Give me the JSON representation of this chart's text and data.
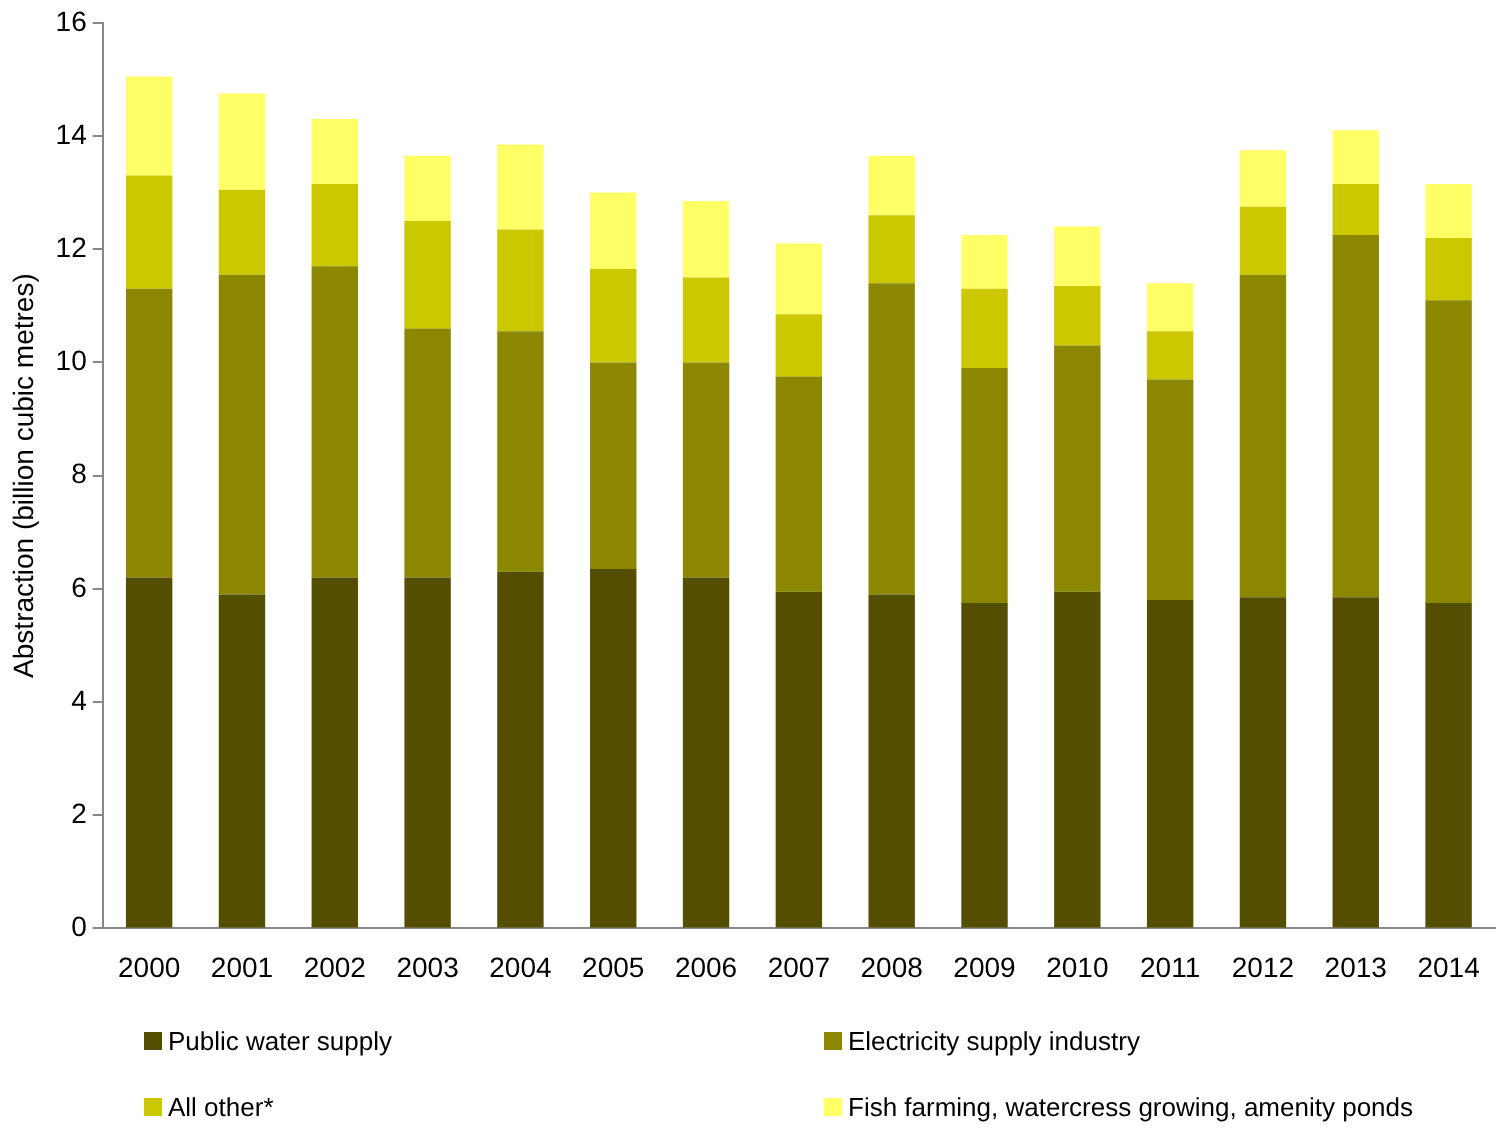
{
  "chart_data": {
    "type": "bar",
    "stacked": true,
    "ylabel": "Abstraction (billion cubic metres)",
    "categories": [
      "2000",
      "2001",
      "2002",
      "2003",
      "2004",
      "2005",
      "2006",
      "2007",
      "2008",
      "2009",
      "2010",
      "2011",
      "2012",
      "2013",
      "2014"
    ],
    "series": [
      {
        "name": "Public water supply",
        "color": "#544f00",
        "values": [
          6.2,
          5.9,
          6.2,
          6.2,
          6.3,
          6.35,
          6.2,
          5.95,
          5.9,
          5.75,
          5.95,
          5.8,
          5.85,
          5.85,
          5.75
        ]
      },
      {
        "name": "Electricity supply industry",
        "color": "#8b8800",
        "values": [
          5.1,
          5.65,
          5.5,
          4.4,
          4.25,
          3.65,
          3.8,
          3.8,
          5.5,
          4.15,
          4.35,
          3.9,
          5.7,
          6.4,
          5.35
        ]
      },
      {
        "name": "All other*",
        "color": "#cbc800",
        "values": [
          2.0,
          1.5,
          1.45,
          1.9,
          1.8,
          1.65,
          1.5,
          1.1,
          1.2,
          1.4,
          1.05,
          0.85,
          1.2,
          0.9,
          1.1
        ]
      },
      {
        "name": "Fish farming, watercress growing, amenity ponds",
        "color": "#ffff66",
        "values": [
          1.75,
          1.7,
          1.15,
          1.15,
          1.5,
          1.35,
          1.35,
          1.25,
          1.05,
          0.95,
          1.05,
          0.85,
          1.0,
          0.95,
          0.95
        ]
      }
    ],
    "ylim": [
      0,
      16
    ],
    "yticks": [
      0,
      2,
      4,
      6,
      8,
      10,
      12,
      14,
      16
    ],
    "grid": false,
    "legend": "bottom"
  }
}
